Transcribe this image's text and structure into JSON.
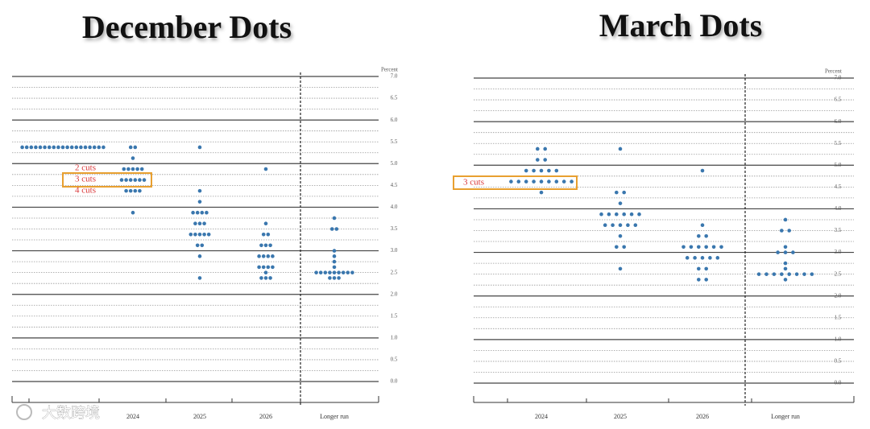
{
  "watermark": "大数跨境",
  "chart_data": [
    {
      "type": "dot-plot",
      "title": "December Dots",
      "y_label": "Percent",
      "categories": [
        null,
        "2024",
        "2025",
        "2026",
        "Longer run"
      ],
      "levels": [
        [
          5.375
        ],
        [
          5.375,
          5.125,
          4.875,
          4.625,
          4.375,
          3.875
        ],
        [
          5.375,
          4.375,
          4.125,
          3.875,
          3.625,
          3.375,
          3.125,
          2.875,
          2.375
        ],
        [
          4.875,
          3.625,
          3.375,
          3.125,
          2.875,
          2.625,
          2.5,
          2.375
        ],
        [
          3.75,
          3.5,
          3.0,
          2.875,
          2.75,
          2.625,
          2.5,
          2.375
        ]
      ],
      "counts": [
        [
          19
        ],
        [
          2,
          1,
          5,
          6,
          4,
          1
        ],
        [
          1,
          1,
          1,
          4,
          3,
          5,
          2,
          1,
          1
        ],
        [
          1,
          1,
          2,
          3,
          4,
          4,
          1,
          3
        ],
        [
          1,
          2,
          1,
          1,
          1,
          1,
          9,
          3
        ]
      ],
      "annotations": [
        {
          "text": "2 cuts",
          "boxed": false
        },
        {
          "text": "3 cuts",
          "boxed": true
        },
        {
          "text": "4 cuts",
          "boxed": false
        }
      ],
      "ylim": [
        0,
        7
      ],
      "yticks": [
        {
          "value": 0,
          "label": "0.0"
        },
        0.5,
        {
          "value": 1,
          "label": "1.0"
        },
        1.5,
        {
          "value": 2,
          "label": "2.0"
        },
        2.5,
        {
          "value": 3,
          "label": "3.0"
        },
        3.5,
        {
          "value": 4,
          "label": "4.0"
        },
        4.5,
        {
          "value": 5,
          "label": "5.0"
        },
        5.5,
        {
          "value": 6,
          "label": "6.0"
        },
        6.5,
        {
          "value": 7,
          "label": "7.0"
        }
      ],
      "dot_color": "#3a77ae",
      "grid": true
    },
    {
      "type": "dot-plot",
      "title": "March Dots",
      "y_label": "Percent",
      "categories": [
        "2024",
        "2025",
        "2026",
        "Longer run"
      ],
      "levels": [
        [
          5.375,
          5.125,
          4.875,
          4.625,
          4.375
        ],
        [
          5.375,
          4.375,
          4.125,
          3.875,
          3.625,
          3.375,
          3.125,
          2.625
        ],
        [
          4.875,
          3.625,
          3.375,
          3.125,
          2.875,
          2.625,
          2.375
        ],
        [
          3.75,
          3.5,
          3.125,
          3.0,
          2.75,
          2.625,
          2.5,
          2.375
        ]
      ],
      "counts": [
        [
          2,
          2,
          5,
          9,
          1
        ],
        [
          1,
          2,
          1,
          6,
          5,
          1,
          2,
          1
        ],
        [
          1,
          1,
          2,
          6,
          5,
          2,
          2
        ],
        [
          1,
          2,
          1,
          3,
          1,
          1,
          8,
          1
        ]
      ],
      "annotations": [
        {
          "text": "3 cuts",
          "boxed": true
        }
      ],
      "ylim": [
        0,
        7
      ],
      "yticks": [
        {
          "value": 0,
          "label": "0.0"
        },
        0.5,
        {
          "value": 1,
          "label": "1.0"
        },
        1.5,
        {
          "value": 2,
          "label": "2.0"
        },
        2.5,
        {
          "value": 3,
          "label": "3.0"
        },
        3.5,
        {
          "value": 4,
          "label": "4.0"
        },
        4.5,
        {
          "value": 5,
          "label": "5.0"
        },
        5.5,
        {
          "value": 6,
          "label": "6.0"
        },
        6.5,
        {
          "value": 7,
          "label": "7.0"
        }
      ],
      "dot_color": "#3a77ae",
      "grid": true
    }
  ]
}
